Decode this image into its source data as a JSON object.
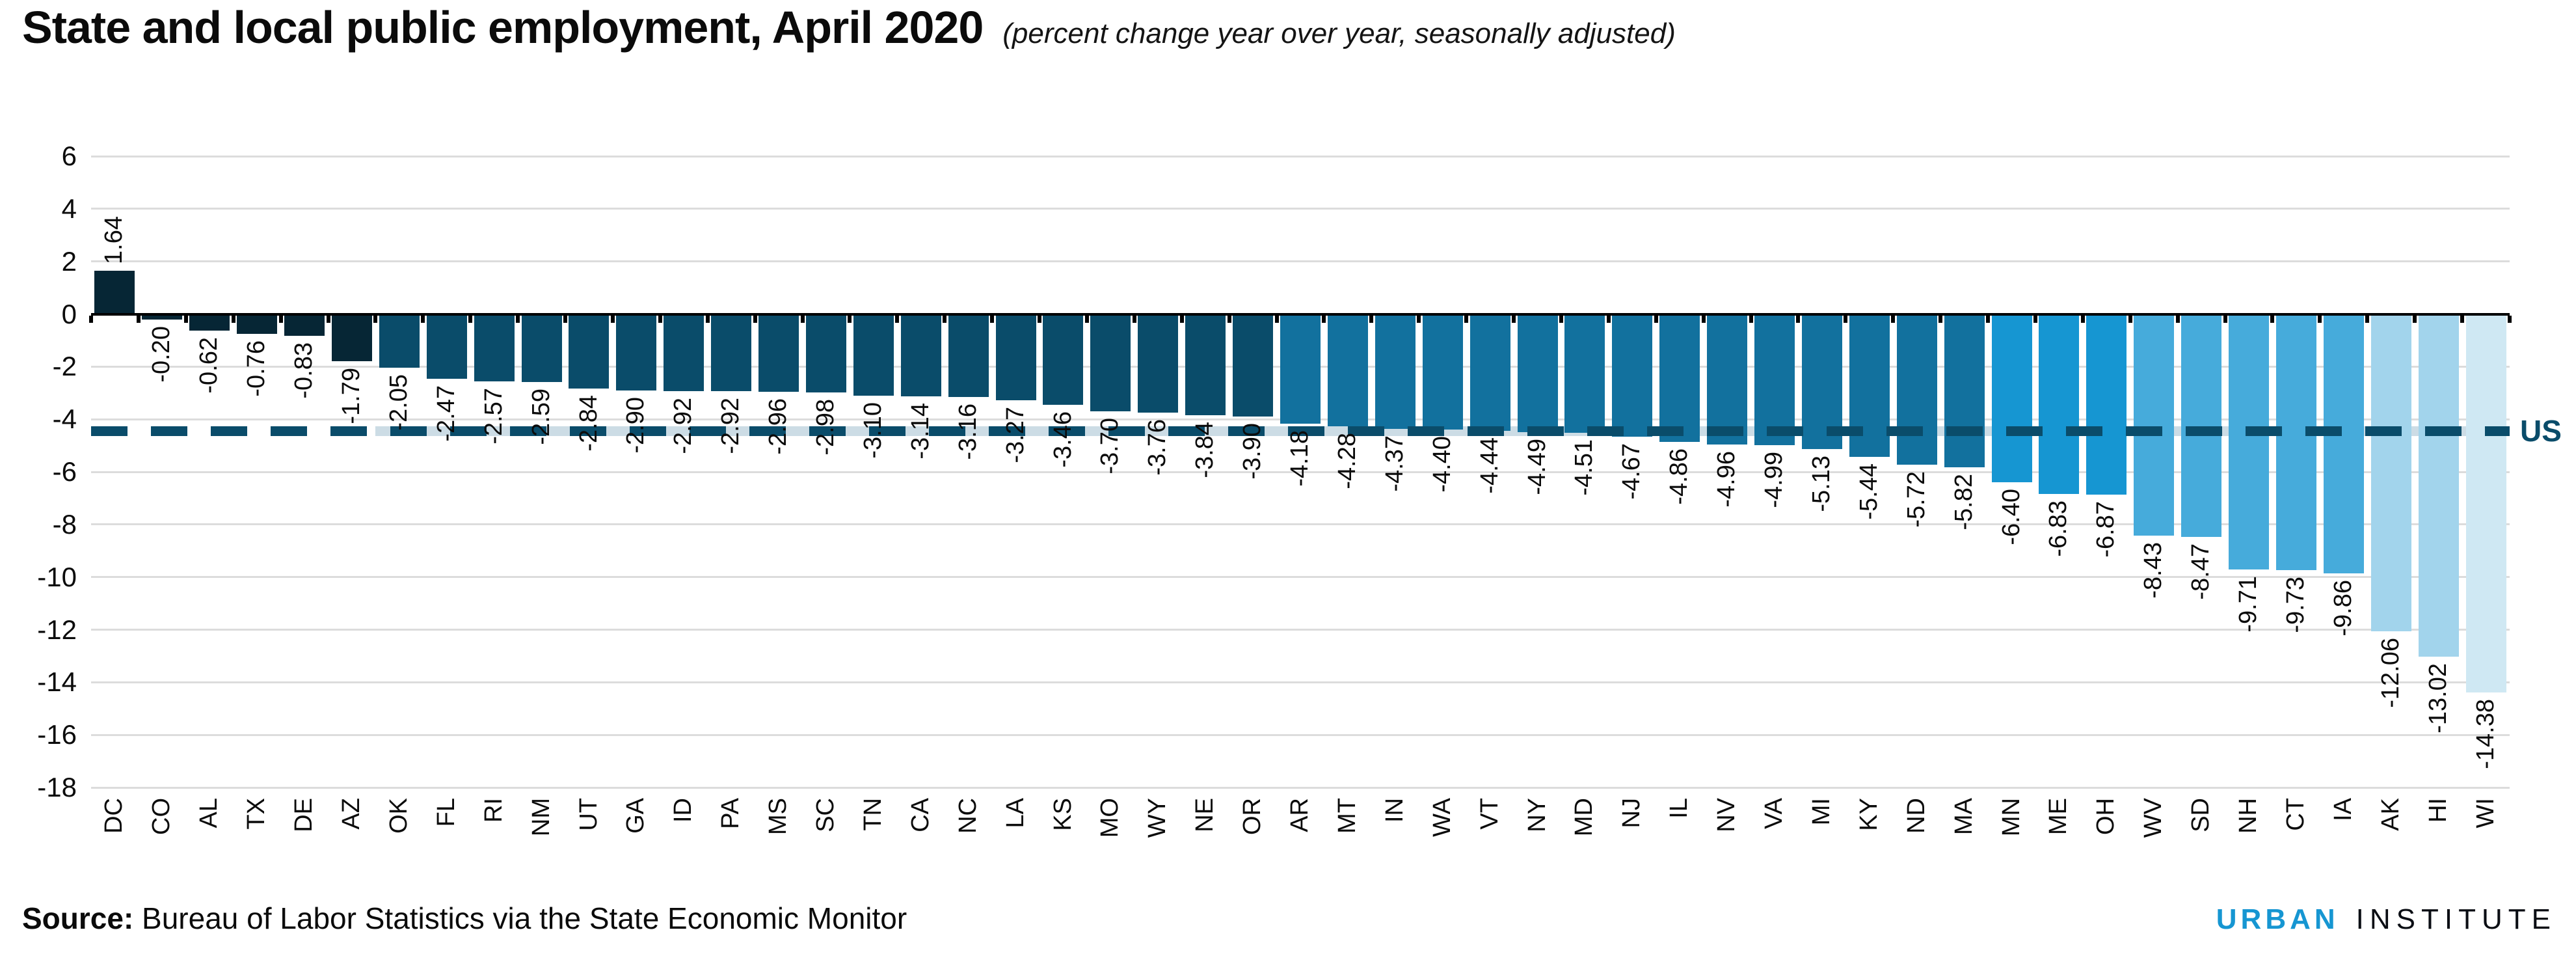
{
  "header": {
    "title": "State and local public employment, April 2020",
    "subtitle": "(percent change year over year, seasonally adjusted)"
  },
  "chart_data": {
    "type": "bar",
    "title": "State and local public employment, April 2020",
    "subtitle": "(percent change year over year, seasonally adjusted)",
    "categories": [
      "DC",
      "CO",
      "AL",
      "TX",
      "DE",
      "AZ",
      "OK",
      "FL",
      "RI",
      "NM",
      "UT",
      "GA",
      "ID",
      "PA",
      "MS",
      "SC",
      "TN",
      "CA",
      "NC",
      "LA",
      "KS",
      "MO",
      "WY",
      "NE",
      "OR",
      "AR",
      "MT",
      "IN",
      "WA",
      "VT",
      "NY",
      "MD",
      "NJ",
      "IL",
      "NV",
      "VA",
      "MI",
      "KY",
      "ND",
      "MA",
      "MN",
      "ME",
      "OH",
      "WV",
      "SD",
      "NH",
      "CT",
      "IA",
      "AK",
      "HI",
      "WI"
    ],
    "values": [
      1.64,
      -0.2,
      -0.62,
      -0.76,
      -0.83,
      -1.79,
      -2.05,
      -2.47,
      -2.57,
      -2.59,
      -2.84,
      -2.9,
      -2.92,
      -2.92,
      -2.96,
      -2.98,
      -3.1,
      -3.14,
      -3.16,
      -3.27,
      -3.46,
      -3.7,
      -3.76,
      -3.84,
      -3.9,
      -4.18,
      -4.28,
      -4.37,
      -4.4,
      -4.44,
      -4.49,
      -4.51,
      -4.67,
      -4.86,
      -4.96,
      -4.99,
      -5.13,
      -5.44,
      -5.72,
      -5.82,
      -6.4,
      -6.83,
      -6.87,
      -8.43,
      -8.47,
      -9.71,
      -9.73,
      -9.86,
      -12.06,
      -13.02,
      -14.38
    ],
    "xlabel": "",
    "ylabel": "",
    "ylim": [
      -18,
      6
    ],
    "yticks": [
      6,
      4,
      2,
      0,
      -2,
      -4,
      -6,
      -8,
      -10,
      -12,
      -14,
      -16,
      -18
    ],
    "grid": "horizontal",
    "value_labels": "two-decimal, rotated 90",
    "reference_line": {
      "label": "US",
      "value": -4.45
    },
    "colors": {
      "palette_by_2pt_bin": [
        "#062635",
        "#0a4c6a",
        "#12719e",
        "#1696d2",
        "#46abdb",
        "#73bfe2",
        "#a2d4ec",
        "#cfe8f3"
      ],
      "bin_size": 2,
      "reference_dash": "#0a4c6a",
      "reference_band": "#ccdce5",
      "reference_label": "#0a4c6a",
      "gridline": "#dcdcdc",
      "zero_axis": "#000000"
    }
  },
  "footer": {
    "source_label": "Source:",
    "source_text": "Bureau of Labor Statistics via the State Economic Monitor",
    "logo": {
      "urban": "URBAN",
      "institute": "INSTITUTE",
      "urban_color": "#1696d2"
    }
  }
}
